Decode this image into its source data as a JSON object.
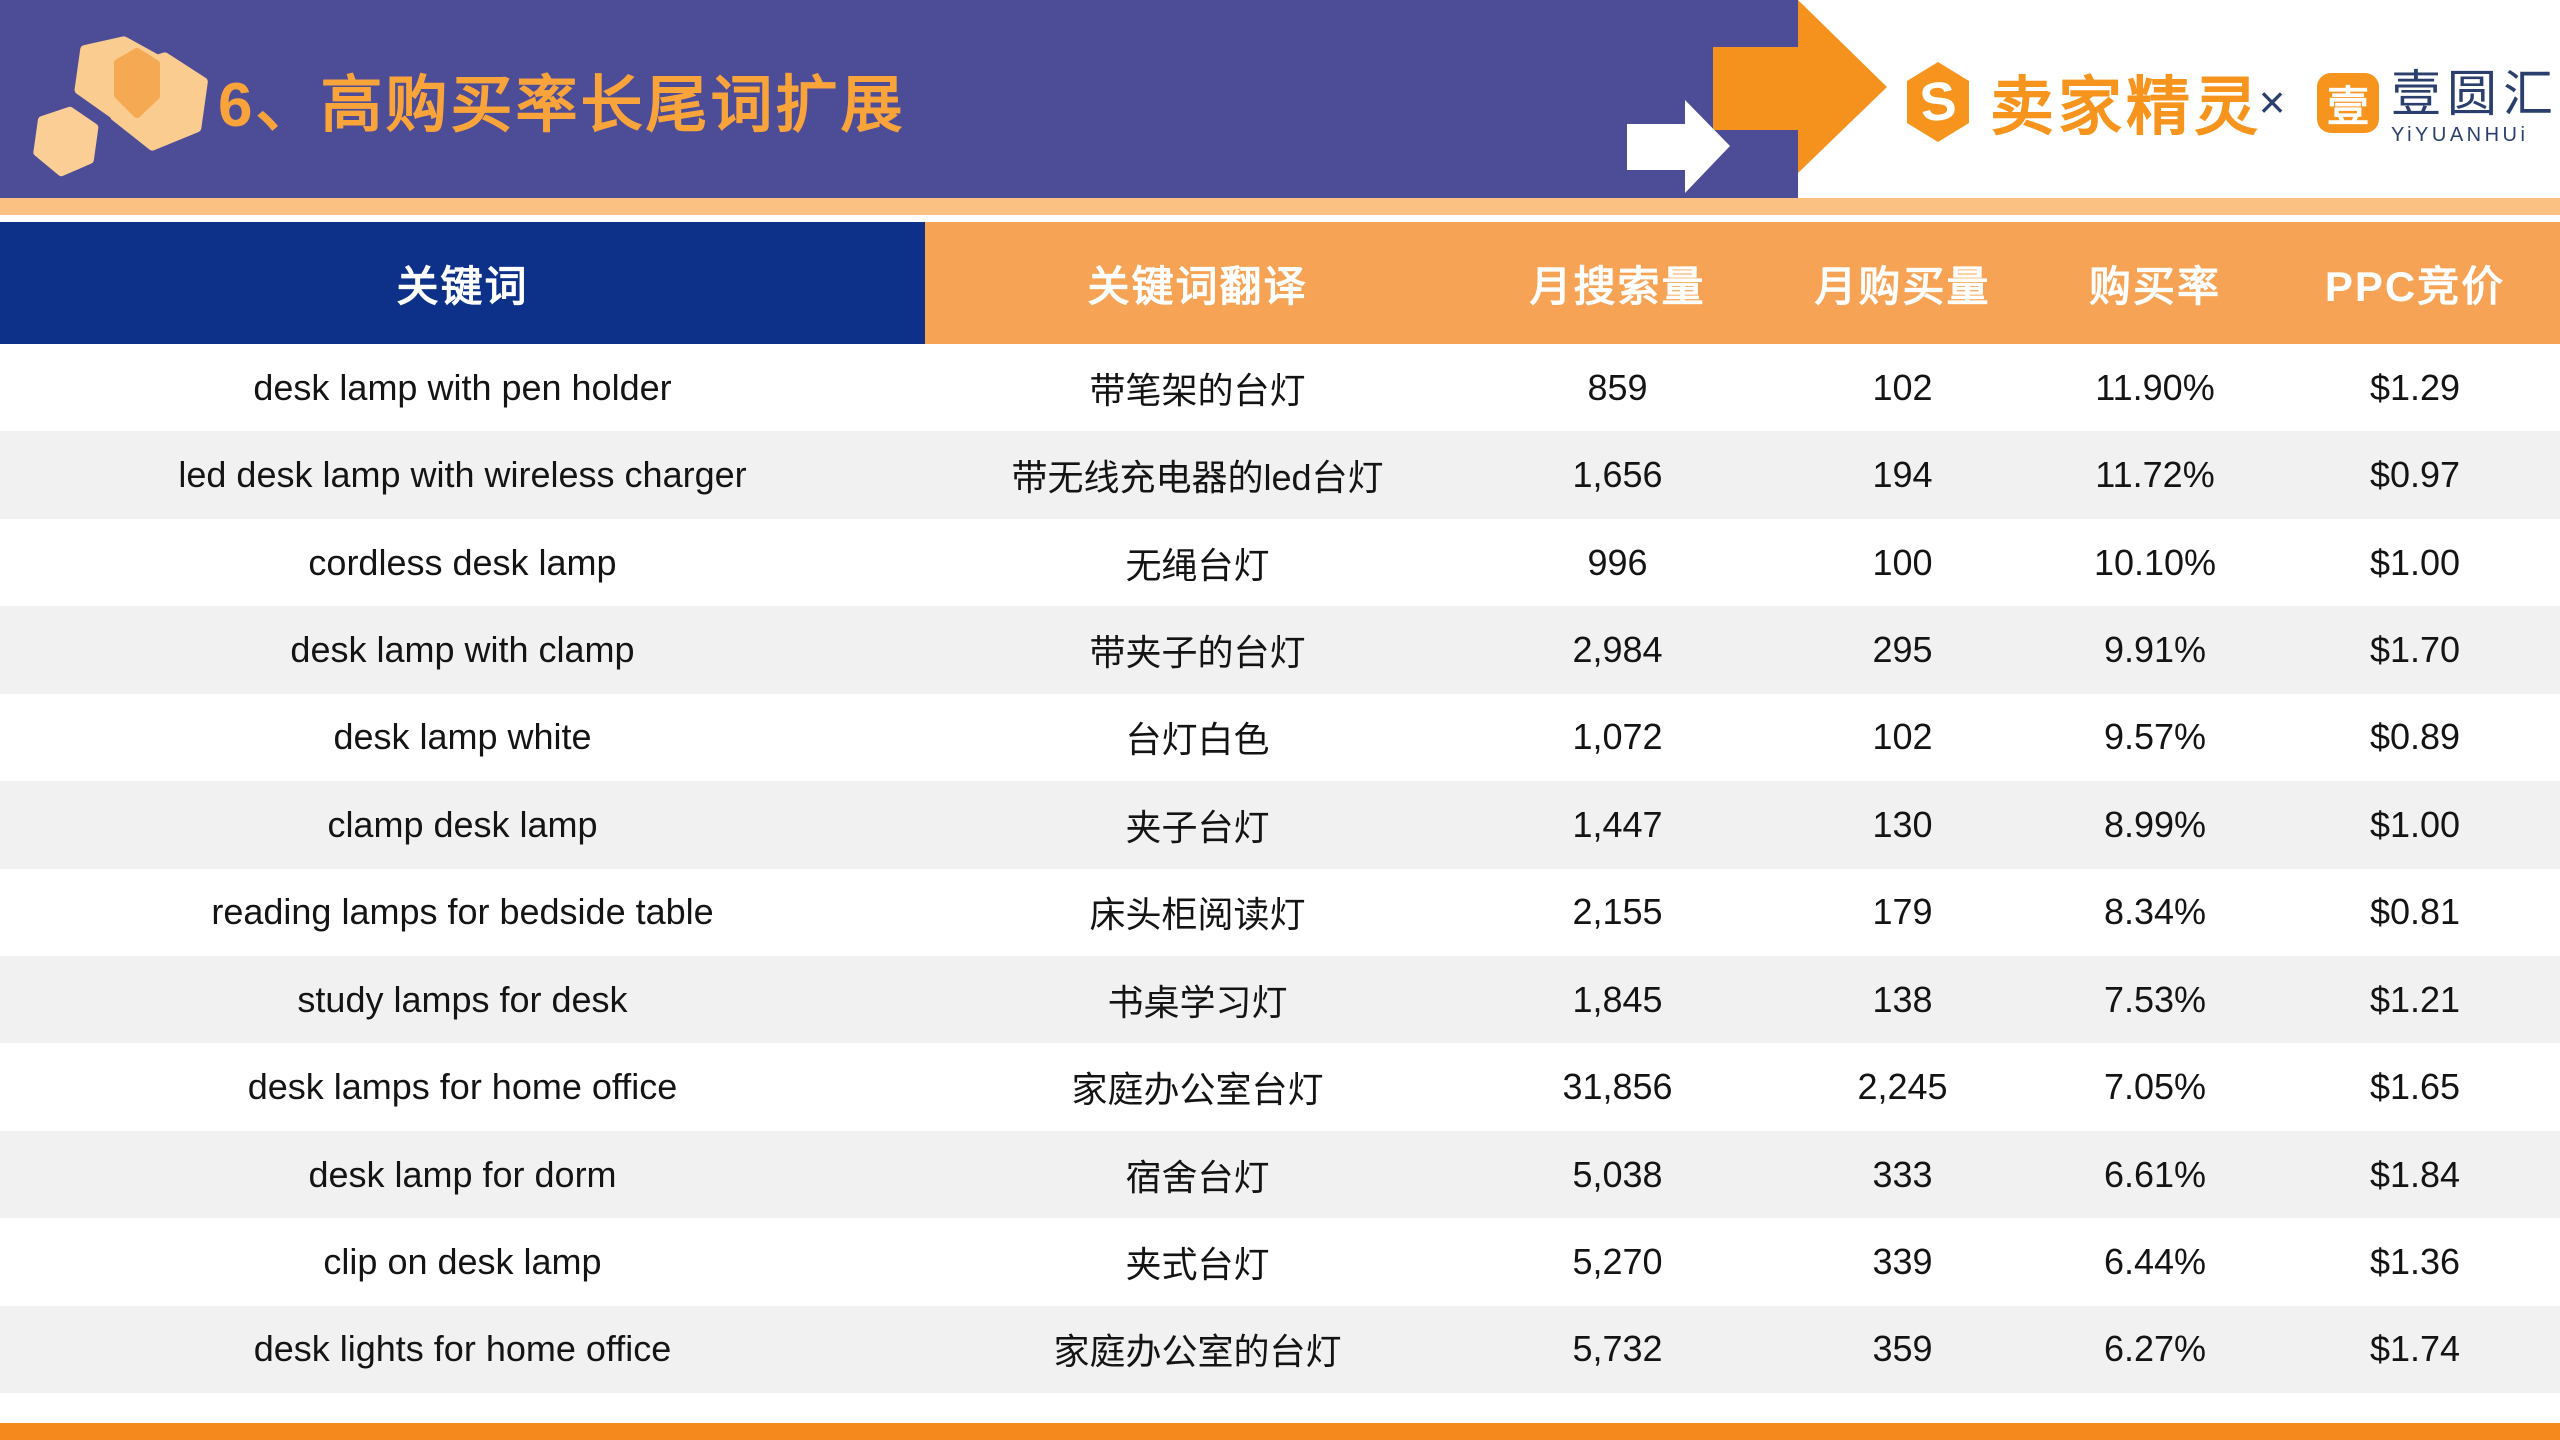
{
  "slide": {
    "title": "6、高购买率长尾词扩展",
    "logos": {
      "sellersprite_glyph": "S",
      "sellersprite_name": "卖家精灵",
      "separator": "×",
      "yiyuanhui_glyph": "壹",
      "yiyuanhui_name": "壹圆汇",
      "yiyuanhui_sub": "YiYUANHUi"
    },
    "colors": {
      "banner_purple": "#4D4C96",
      "title_orange": "#F9A43B",
      "strip_light_orange": "#FBC183",
      "arrow_orange": "#F5921E",
      "header_navy": "#0D3189",
      "header_orange": "#F7A356",
      "row_alt_gray": "#F1F1F1",
      "bottom_strip_orange": "#F6891D",
      "brand_orange": "#F7941D",
      "brand_navy": "#2B3F6E"
    }
  },
  "table": {
    "columns": [
      "关键词",
      "关键词翻译",
      "月搜索量",
      "月购买量",
      "购买率",
      "PPC竞价"
    ],
    "column_keys": [
      "keyword",
      "translation",
      "monthly-searches",
      "monthly-purchases",
      "purchase-rate",
      "ppc-bid"
    ],
    "rows": [
      [
        "desk lamp with pen holder",
        "带笔架的台灯",
        "859",
        "102",
        "11.90%",
        "$1.29"
      ],
      [
        "led desk lamp with wireless charger",
        "带无线充电器的led台灯",
        "1,656",
        "194",
        "11.72%",
        "$0.97"
      ],
      [
        "cordless desk lamp",
        "无绳台灯",
        "996",
        "100",
        "10.10%",
        "$1.00"
      ],
      [
        "desk lamp with clamp",
        "带夹子的台灯",
        "2,984",
        "295",
        "9.91%",
        "$1.70"
      ],
      [
        "desk lamp white",
        "台灯白色",
        "1,072",
        "102",
        "9.57%",
        "$0.89"
      ],
      [
        "clamp desk lamp",
        "夹子台灯",
        "1,447",
        "130",
        "8.99%",
        "$1.00"
      ],
      [
        "reading lamps for bedside table",
        "床头柜阅读灯",
        "2,155",
        "179",
        "8.34%",
        "$0.81"
      ],
      [
        "study lamps for desk",
        "书桌学习灯",
        "1,845",
        "138",
        "7.53%",
        "$1.21"
      ],
      [
        "desk lamps for home office",
        "家庭办公室台灯",
        "31,856",
        "2,245",
        "7.05%",
        "$1.65"
      ],
      [
        "desk lamp for dorm",
        "宿舍台灯",
        "5,038",
        "333",
        "6.61%",
        "$1.84"
      ],
      [
        "clip on desk lamp",
        "夹式台灯",
        "5,270",
        "339",
        "6.44%",
        "$1.36"
      ],
      [
        "desk lights for home office",
        "家庭办公室的台灯",
        "5,732",
        "359",
        "6.27%",
        "$1.74"
      ]
    ]
  }
}
